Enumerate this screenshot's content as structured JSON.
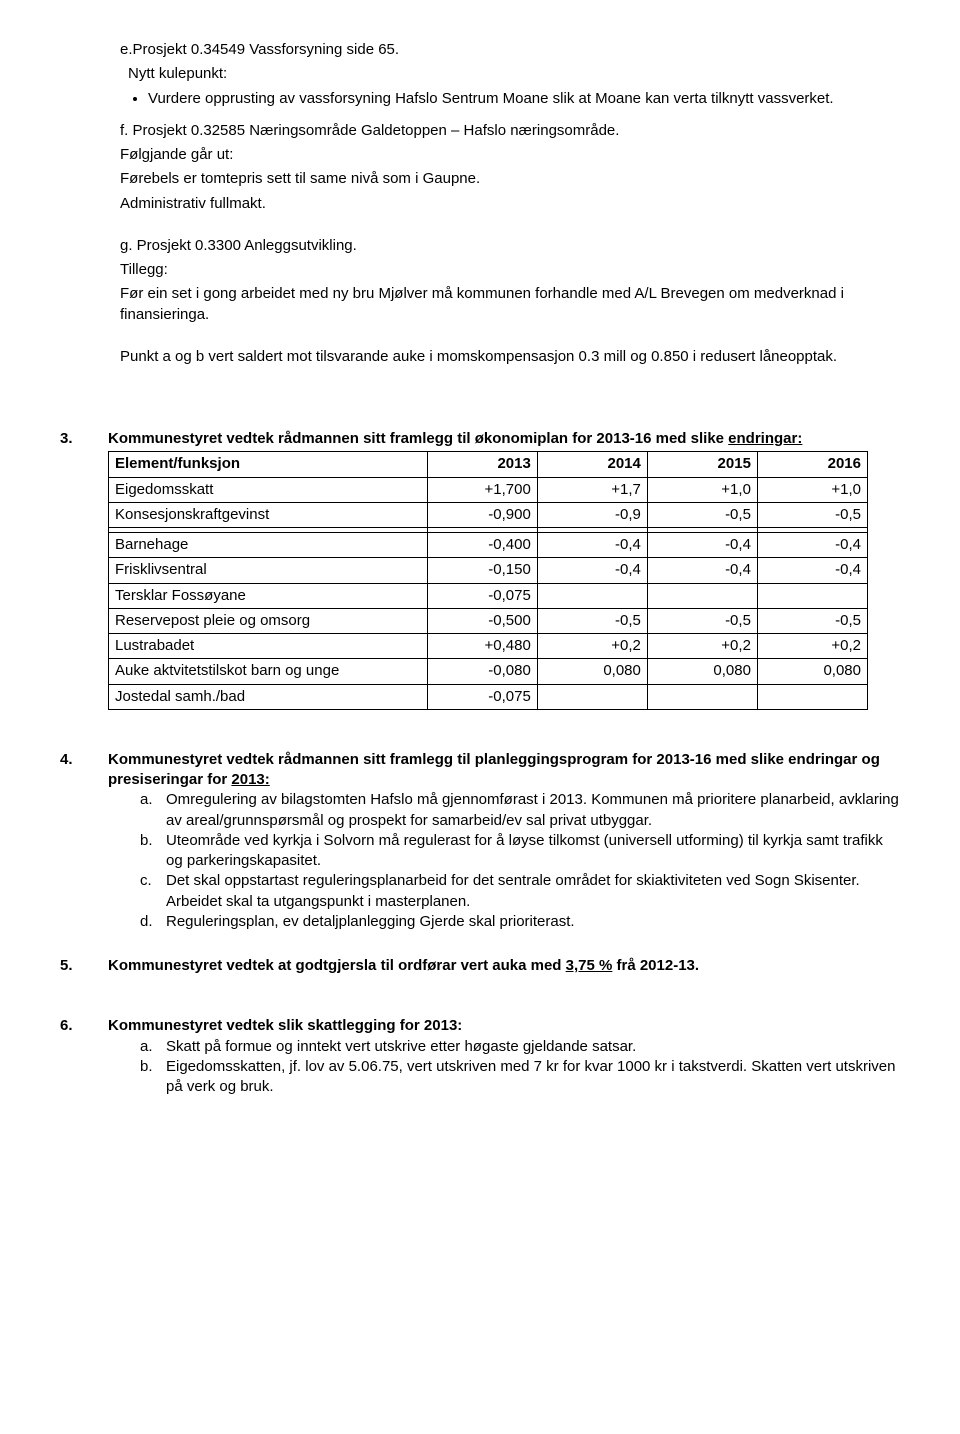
{
  "sectionE": {
    "title": "e.Prosjekt 0.34549 Vassforsyning side 65.",
    "sub1": "Nytt kulepunkt:",
    "bullet": "Vurdere opprusting av vassforsyning Hafslo Sentrum Moane slik at Moane kan verta tilknytt vassverket."
  },
  "sectionF": {
    "title": "f. Prosjekt  0.32585  Næringsområde Galdetoppen – Hafslo næringsområde.",
    "line1": "Følgjande går ut:",
    "line2": "Førebels er tomtepris sett til same nivå som i Gaupne.",
    "line3": "Administrativ fullmakt."
  },
  "sectionG": {
    "title": "g. Prosjekt 0.3300 Anleggsutvikling.",
    "line1": "Tillegg:",
    "line2": "Før ein set i gong arbeidet med ny bru Mjølver må kommunen forhandle med A/L Brevegen om medverknad i finansieringa.",
    "line3": "Punkt a og b vert saldert mot tilsvarande auke i momskompensasjon 0.3 mill og 0.850 i redusert låneopptak."
  },
  "item3": {
    "num": "3.",
    "heading_part1": "Kommunestyret vedtek rådmannen sitt framlegg til økonomiplan for 2013-16 med slike ",
    "heading_underlined": "endringar:"
  },
  "table": {
    "headers": [
      "Element/funksjon",
      "2013",
      "2014",
      "2015",
      "2016"
    ],
    "rows": [
      [
        "Eigedomsskatt",
        "+1,700",
        "+1,7",
        "+1,0",
        "+1,0"
      ],
      [
        "Konsesjonskraftgevinst",
        "-0,900",
        "-0,9",
        "-0,5",
        "-0,5"
      ],
      [
        "",
        "",
        "",
        "",
        ""
      ],
      [
        "Barnehage",
        "-0,400",
        "-0,4",
        "-0,4",
        "-0,4"
      ],
      [
        "Frisklivsentral",
        "-0,150",
        "-0,4",
        "-0,4",
        "-0,4"
      ],
      [
        "Tersklar Fossøyane",
        "-0,075",
        "",
        "",
        ""
      ],
      [
        "Reservepost pleie og omsorg",
        "-0,500",
        "-0,5",
        "-0,5",
        "-0,5"
      ],
      [
        "Lustrabadet",
        "+0,480",
        "+0,2",
        "+0,2",
        "+0,2"
      ],
      [
        "Auke aktvitetstilskot barn og unge",
        "-0,080",
        "0,080",
        "0,080",
        "0,080"
      ],
      [
        "Jostedal samh./bad",
        "-0,075",
        "",
        "",
        ""
      ]
    ]
  },
  "item4": {
    "num": "4.",
    "heading_part1": "Kommunestyret vedtek rådmannen sitt framlegg til planleggingsprogram for 2013-16 med slike endringar og presiseringar for ",
    "heading_underlined": "2013:",
    "a_label": "a.",
    "a_text": "Omregulering av bilagstomten Hafslo må gjennomførast i 2013. Kommunen må prioritere planarbeid, avklaring av areal/grunnspørsmål og prospekt for samarbeid/ev sal privat utbyggar.",
    "b_label": "b.",
    "b_text": "Uteområde ved kyrkja i Solvorn må regulerast for å løyse tilkomst (universell utforming) til kyrkja samt trafikk og parkeringskapasitet.",
    "c_label": "c.",
    "c_text": "Det skal oppstartast reguleringsplanarbeid for det sentrale området for skiaktiviteten ved Sogn Skisenter. Arbeidet skal ta utgangspunkt i masterplanen.",
    "d_label": "d.",
    "d_text": "Reguleringsplan, ev detaljplanlegging Gjerde skal prioriterast."
  },
  "item5": {
    "num": "5.",
    "heading_part1": "Kommunestyret vedtek at godtgjersla til ordførar vert auka med ",
    "heading_underlined": "3,75 %",
    "heading_part2": " frå 2012-13."
  },
  "item6": {
    "num": "6.",
    "heading": "Kommunestyret vedtek slik skattlegging for 2013:",
    "a_label": "a.",
    "a_text": "Skatt på formue og inntekt vert utskrive etter høgaste gjeldande satsar.",
    "b_label": "b.",
    "b_text": "Eigedomsskatten, jf. lov av 5.06.75, vert utskriven med 7 kr for kvar 1000 kr i takstverdi. Skatten vert utskriven på verk og bruk."
  }
}
